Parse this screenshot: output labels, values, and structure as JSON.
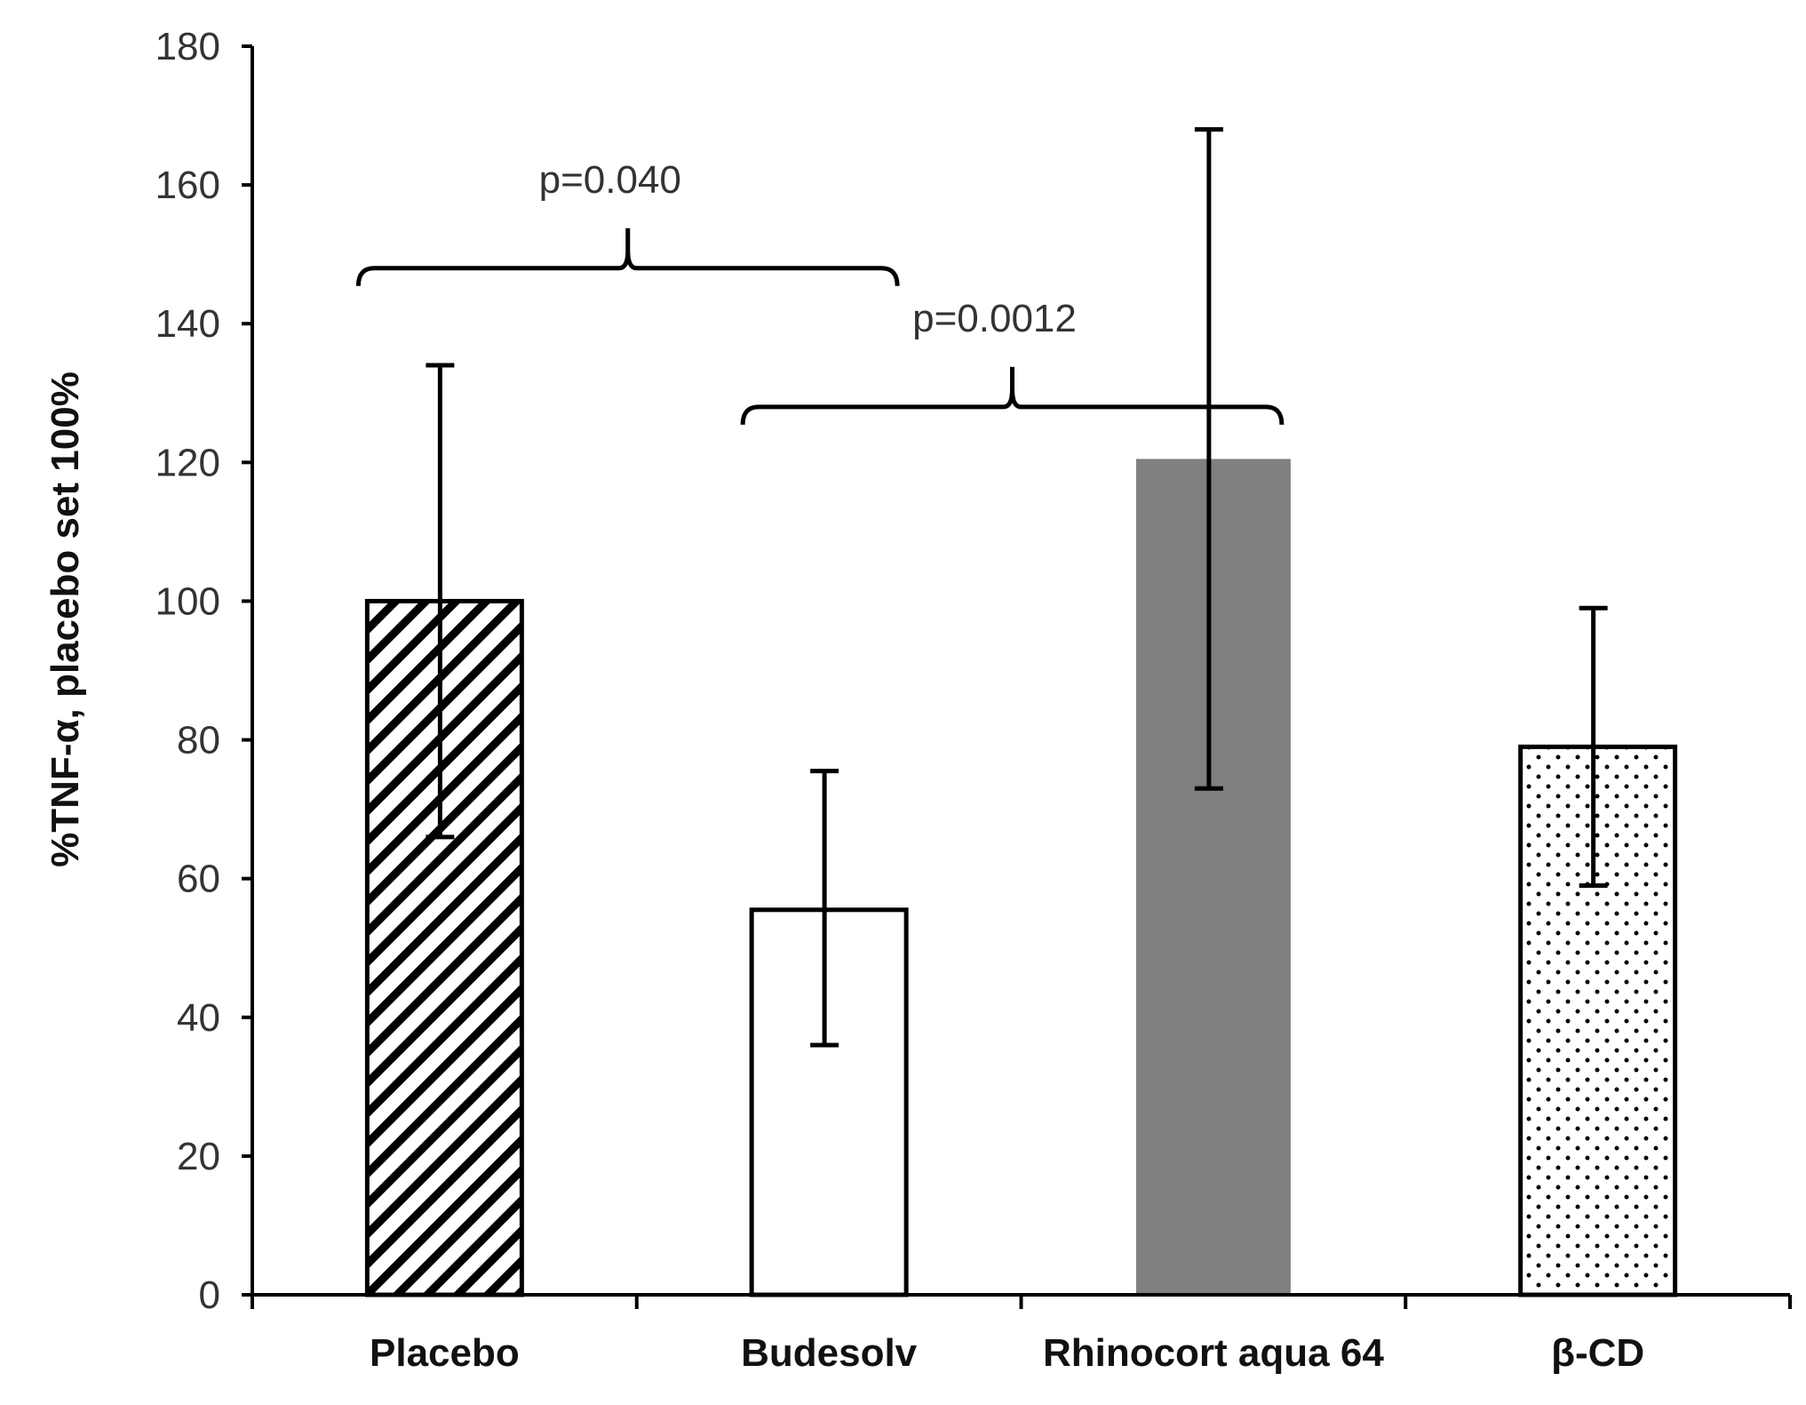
{
  "chart_data": {
    "type": "bar",
    "title": "",
    "xlabel": "",
    "ylabel": "%TNF-α, placebo set 100%",
    "ylim": [
      0,
      180
    ],
    "yticks": [
      0,
      20,
      40,
      60,
      80,
      100,
      120,
      140,
      160,
      180
    ],
    "grid": false,
    "categories": [
      "Placebo",
      "Budesolv",
      "Rhinocort aqua 64",
      "β-CD"
    ],
    "values": [
      100,
      55.5,
      120.5,
      79
    ],
    "error_low": [
      66,
      36,
      73,
      59
    ],
    "error_high": [
      134,
      75.5,
      168,
      99
    ],
    "patterns": [
      "diagonal-hatch",
      "none",
      "solid",
      "dots"
    ],
    "fill_colors": [
      "#ffffff",
      "#ffffff",
      "#808080",
      "#ffffff"
    ],
    "annotations": [
      {
        "label": "p=0.040",
        "from": "Placebo",
        "to": "Budesolv",
        "level": 148
      },
      {
        "label": "p=0.0012",
        "from": "Budesolv",
        "to": "Rhinocort aqua 64",
        "level": 128
      }
    ]
  }
}
